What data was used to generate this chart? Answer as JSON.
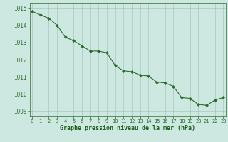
{
  "x": [
    0,
    1,
    2,
    3,
    4,
    5,
    6,
    7,
    8,
    9,
    10,
    11,
    12,
    13,
    14,
    15,
    16,
    17,
    18,
    19,
    20,
    21,
    22,
    23
  ],
  "y": [
    1014.8,
    1014.6,
    1014.4,
    1014.0,
    1013.3,
    1013.1,
    1012.8,
    1012.5,
    1012.5,
    1012.4,
    1011.65,
    1011.35,
    1011.3,
    1011.1,
    1011.05,
    1010.7,
    1010.65,
    1010.45,
    1009.8,
    1009.75,
    1009.4,
    1009.35,
    1009.65,
    1009.8
  ],
  "line_color": "#2d6b2d",
  "marker_color": "#2d6b2d",
  "bg_color": "#cce8e0",
  "grid_color": "#9dbfb8",
  "xlabel": "Graphe pression niveau de la mer (hPa)",
  "xlabel_color": "#1a5c1a",
  "tick_color": "#2d6b2d",
  "spine_color": "#2d6b2d",
  "ylim": [
    1008.7,
    1015.3
  ],
  "yticks": [
    1009,
    1010,
    1011,
    1012,
    1013,
    1014,
    1015
  ],
  "xticks": [
    0,
    1,
    2,
    3,
    4,
    5,
    6,
    7,
    8,
    9,
    10,
    11,
    12,
    13,
    14,
    15,
    16,
    17,
    18,
    19,
    20,
    21,
    22,
    23
  ],
  "xlim": [
    -0.3,
    23.3
  ]
}
